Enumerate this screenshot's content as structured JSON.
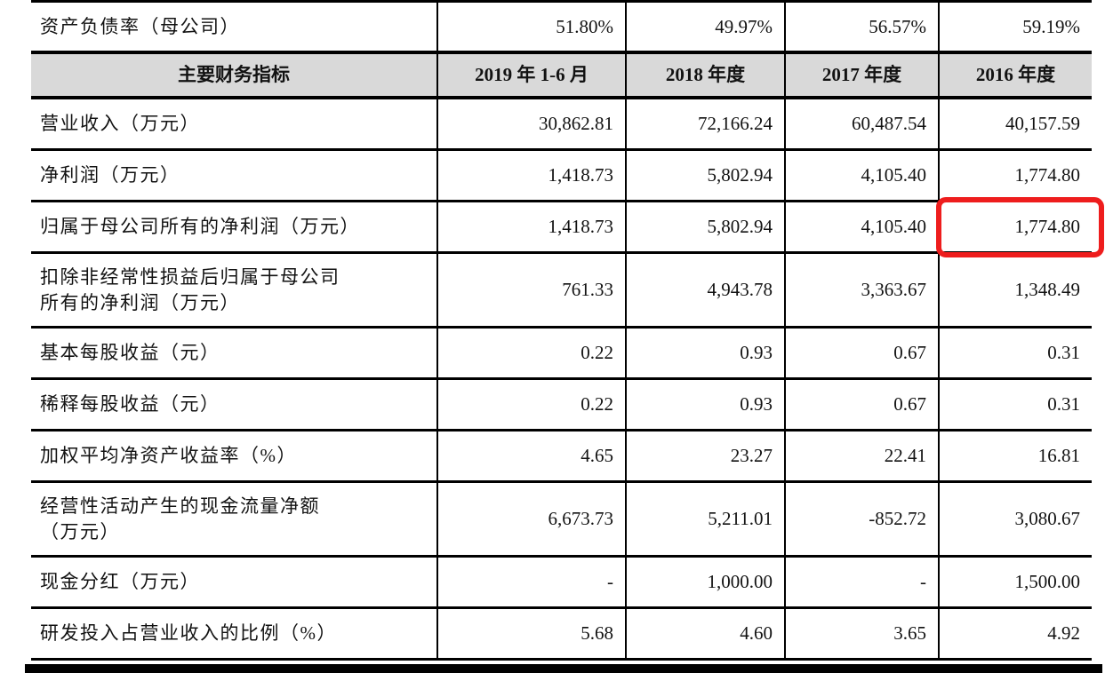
{
  "table": {
    "pre_row": {
      "label": "资产负债率（母公司）",
      "values": [
        "51.80%",
        "49.97%",
        "56.57%",
        "59.19%"
      ]
    },
    "header": {
      "label": "主要财务指标",
      "columns": [
        "2019 年 1-6 月",
        "2018 年度",
        "2017 年度",
        "2016 年度"
      ]
    },
    "rows": [
      {
        "label": "营业收入（万元）",
        "values": [
          "30,862.81",
          "72,166.24",
          "60,487.54",
          "40,157.59"
        ]
      },
      {
        "label": "净利润（万元）",
        "values": [
          "1,418.73",
          "5,802.94",
          "4,105.40",
          "1,774.80"
        ]
      },
      {
        "label": "归属于母公司所有的净利润（万元）",
        "values": [
          "1,418.73",
          "5,802.94",
          "4,105.40",
          "1,774.80"
        ],
        "highlight_col": 3
      },
      {
        "label": "扣除非经常性损益后归属于母公司\n所有的净利润（万元）",
        "values": [
          "761.33",
          "4,943.78",
          "3,363.67",
          "1,348.49"
        ],
        "tall": true
      },
      {
        "label": "基本每股收益（元）",
        "values": [
          "0.22",
          "0.93",
          "0.67",
          "0.31"
        ]
      },
      {
        "label": "稀释每股收益（元）",
        "values": [
          "0.22",
          "0.93",
          "0.67",
          "0.31"
        ]
      },
      {
        "label": "加权平均净资产收益率（%）",
        "values": [
          "4.65",
          "23.27",
          "22.41",
          "16.81"
        ]
      },
      {
        "label": "经营性活动产生的现金流量净额\n（万元）",
        "values": [
          "6,673.73",
          "5,211.01",
          "-852.72",
          "3,080.67"
        ],
        "tall": true
      },
      {
        "label": "现金分红（万元）",
        "values": [
          "-",
          "1,000.00",
          "-",
          "1,500.00"
        ]
      },
      {
        "label": "研发投入占营业收入的比例（%）",
        "values": [
          "5.68",
          "4.60",
          "3.65",
          "4.92"
        ]
      }
    ],
    "colors": {
      "header_bg": "#d9d9d9",
      "border": "#000000",
      "highlight": "#ee1d1d",
      "text": "#121212"
    }
  }
}
